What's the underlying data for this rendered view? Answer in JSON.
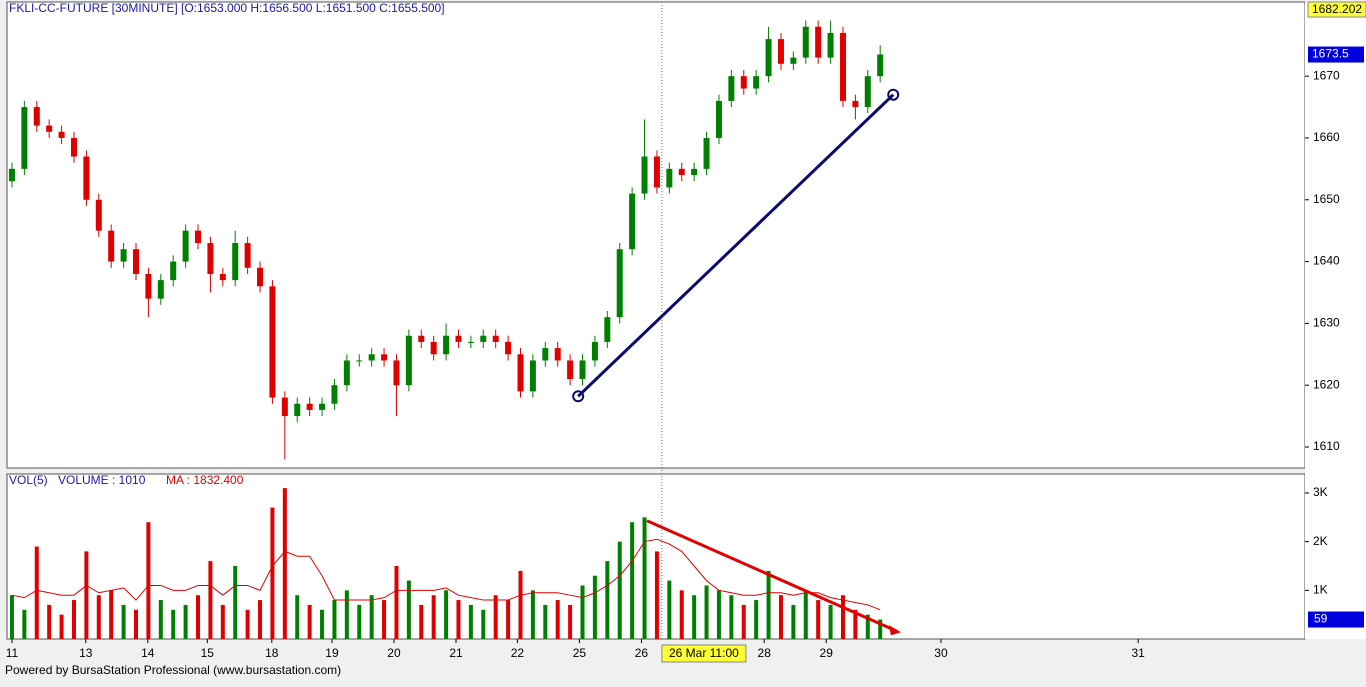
{
  "chart_data": {
    "type": "candlestick",
    "title": "FKLI-CC-FUTURE  [30MINUTE]  [O:1653.000  H:1656.500  L:1651.500  C:1655.500]",
    "footer": "Powered by BursaStation Professional (www.bursastation.com)",
    "up_color": "#008000",
    "down_color": "#e00000",
    "x": [
      0,
      0.2,
      0.4,
      0.6,
      0.8,
      1,
      1.2,
      1.4,
      1.6,
      1.8,
      2,
      2.2,
      2.4,
      2.6,
      2.8,
      3,
      3.2,
      3.4,
      3.6,
      3.8,
      4,
      4.2,
      4.4,
      4.6,
      4.8,
      5,
      5.2,
      5.4,
      5.6,
      5.8,
      6,
      6.2,
      6.4,
      6.6,
      6.8,
      7,
      7.2,
      7.4,
      7.6,
      7.8,
      8,
      8.2,
      8.4,
      8.6,
      8.8,
      9,
      9.2,
      9.4,
      9.6,
      9.8,
      10,
      10.2,
      10.4,
      10.6,
      10.8,
      11,
      11.2,
      11.4,
      11.6,
      11.8,
      12,
      12.2,
      12.4,
      12.6,
      12.8,
      13,
      13.2,
      13.4,
      13.6,
      13.8,
      14
    ],
    "open": [
      1653,
      1655,
      1665,
      1662,
      1661,
      1660,
      1657,
      1650,
      1645,
      1640,
      1642,
      1638,
      1634,
      1637,
      1640,
      1645,
      1643,
      1638,
      1637,
      1643,
      1639,
      1636,
      1618,
      1615,
      1617,
      1616,
      1617,
      1620,
      1624,
      1624,
      1625,
      1624,
      1620,
      1628,
      1627,
      1625,
      1628,
      1627,
      1627,
      1628,
      1627,
      1625,
      1619,
      1624,
      1626,
      1624,
      1621,
      1624,
      1627,
      1631,
      1642,
      1651,
      1657,
      1652,
      1655,
      1654,
      1655,
      1660,
      1666,
      1670,
      1668,
      1670,
      1676,
      1672,
      1673,
      1678,
      1673,
      1677,
      1666,
      1665,
      1670
    ],
    "high": [
      1656,
      1666,
      1666,
      1663,
      1662,
      1661,
      1658,
      1651,
      1646,
      1643,
      1643,
      1639,
      1638,
      1641,
      1646,
      1646,
      1644,
      1639,
      1645,
      1644,
      1640,
      1637,
      1619,
      1618,
      1618,
      1618,
      1621,
      1625,
      1625,
      1626,
      1626,
      1625,
      1629,
      1629,
      1628,
      1630,
      1629,
      1628,
      1629,
      1629,
      1628,
      1626,
      1625,
      1627,
      1627,
      1625,
      1625,
      1628,
      1632,
      1643,
      1652,
      1663,
      1658,
      1656,
      1656,
      1656,
      1661,
      1667,
      1671,
      1671,
      1671,
      1678,
      1677,
      1674,
      1679,
      1679,
      1679,
      1678,
      1667,
      1671,
      1675
    ],
    "low": [
      1652,
      1654,
      1661,
      1660,
      1659,
      1656,
      1649,
      1644,
      1639,
      1639,
      1637,
      1631,
      1633,
      1636,
      1639,
      1642,
      1635,
      1636,
      1636,
      1638,
      1635,
      1617,
      1608,
      1614,
      1615,
      1615,
      1616,
      1619,
      1623,
      1623,
      1623,
      1615,
      1619,
      1626,
      1624,
      1624,
      1626,
      1626,
      1626,
      1626,
      1624,
      1618,
      1618,
      1623,
      1623,
      1620,
      1620,
      1623,
      1626,
      1630,
      1641,
      1650,
      1651,
      1651,
      1653,
      1653,
      1654,
      1659,
      1665,
      1667,
      1667,
      1669,
      1671,
      1671,
      1672,
      1672,
      1672,
      1665,
      1663,
      1664,
      1669
    ],
    "close": [
      1655,
      1665,
      1662,
      1661,
      1660,
      1657,
      1650,
      1645,
      1640,
      1642,
      1638,
      1634,
      1637,
      1640,
      1645,
      1643,
      1638,
      1637,
      1643,
      1639,
      1636,
      1618,
      1615,
      1617,
      1616,
      1617,
      1620,
      1624,
      1624,
      1625,
      1624,
      1620,
      1628,
      1627,
      1625,
      1628,
      1627,
      1627,
      1628,
      1627,
      1625,
      1619,
      1624,
      1626,
      1624,
      1621,
      1624,
      1627,
      1631,
      1642,
      1651,
      1657,
      1652,
      1655,
      1654,
      1655,
      1660,
      1666,
      1670,
      1668,
      1670,
      1676,
      1672,
      1673,
      1678,
      1673,
      1677,
      1666,
      1665,
      1670,
      1673.5
    ],
    "xlim": [
      -0.08,
      20.85
    ],
    "ylim": [
      1606.6,
      1682
    ],
    "yticks": [
      1610,
      1620,
      1630,
      1640,
      1650,
      1660,
      1670
    ],
    "xticks": [
      {
        "value": 0,
        "label": "11"
      },
      {
        "value": 1.19,
        "label": "13"
      },
      {
        "value": 2.19,
        "label": "14"
      },
      {
        "value": 3.15,
        "label": "15"
      },
      {
        "value": 4.19,
        "label": "18"
      },
      {
        "value": 5.16,
        "label": "19"
      },
      {
        "value": 6.16,
        "label": "20"
      },
      {
        "value": 7.16,
        "label": "21"
      },
      {
        "value": 8.15,
        "label": "22"
      },
      {
        "value": 9.15,
        "label": "25"
      },
      {
        "value": 10.15,
        "label": "26"
      },
      {
        "value": 12.13,
        "label": "28"
      },
      {
        "value": 13.13,
        "label": "29"
      },
      {
        "value": 14.98,
        "label": "30"
      },
      {
        "value": 18.16,
        "label": "31"
      }
    ],
    "cursor": {
      "x": 10.48,
      "label": "26 Mar 11:00"
    },
    "top_price_label": "1682.202",
    "last_price_label": "1673.5",
    "trend_line": {
      "x": [
        9.13,
        14.21
      ],
      "y": [
        1618.2,
        1667
      ]
    },
    "volume": {
      "title": "VOL(5)",
      "volume_label": "VOLUME : 1010",
      "ma_label": "MA : 1832.400",
      "values": [
        900,
        600,
        1900,
        700,
        500,
        800,
        1800,
        900,
        1000,
        700,
        600,
        2400,
        800,
        600,
        700,
        900,
        1600,
        700,
        1500,
        600,
        800,
        2700,
        3100,
        900,
        700,
        600,
        800,
        1000,
        700,
        900,
        800,
        1500,
        1200,
        700,
        900,
        1000,
        800,
        700,
        600,
        900,
        800,
        1400,
        1000,
        700,
        800,
        700,
        1100,
        1300,
        1600,
        2000,
        2400,
        2500,
        1800,
        1200,
        1000,
        900,
        1100,
        1000,
        900,
        700,
        800,
        1400,
        900,
        700,
        1000,
        800,
        700,
        900,
        600,
        500,
        400
      ],
      "ma": [
        900,
        850,
        1000,
        950,
        900,
        900,
        1100,
        950,
        1000,
        1050,
        800,
        1100,
        1100,
        1000,
        1000,
        1100,
        1100,
        900,
        1100,
        1100,
        1000,
        1500,
        1800,
        1700,
        1700,
        1300,
        800,
        800,
        800,
        800,
        850,
        1000,
        1000,
        1000,
        1000,
        1050,
        900,
        850,
        800,
        800,
        800,
        900,
        950,
        950,
        950,
        900,
        850,
        950,
        1100,
        1300,
        1600,
        2000,
        2050,
        1950,
        1800,
        1500,
        1200,
        1000,
        950,
        900,
        900,
        950,
        950,
        900,
        950,
        950,
        850,
        800,
        750,
        700,
        600
      ],
      "ma_color": "#e00000",
      "ylim": [
        0,
        3390
      ],
      "yticks": [
        {
          "value": 1000,
          "label": "1K"
        },
        {
          "value": 2000,
          "label": "2K"
        },
        {
          "value": 3000,
          "label": "3K"
        }
      ],
      "last_label": "59",
      "trend_line": {
        "x": [
          10.24,
          14.27
        ],
        "y": [
          2430,
          160
        ]
      }
    }
  }
}
